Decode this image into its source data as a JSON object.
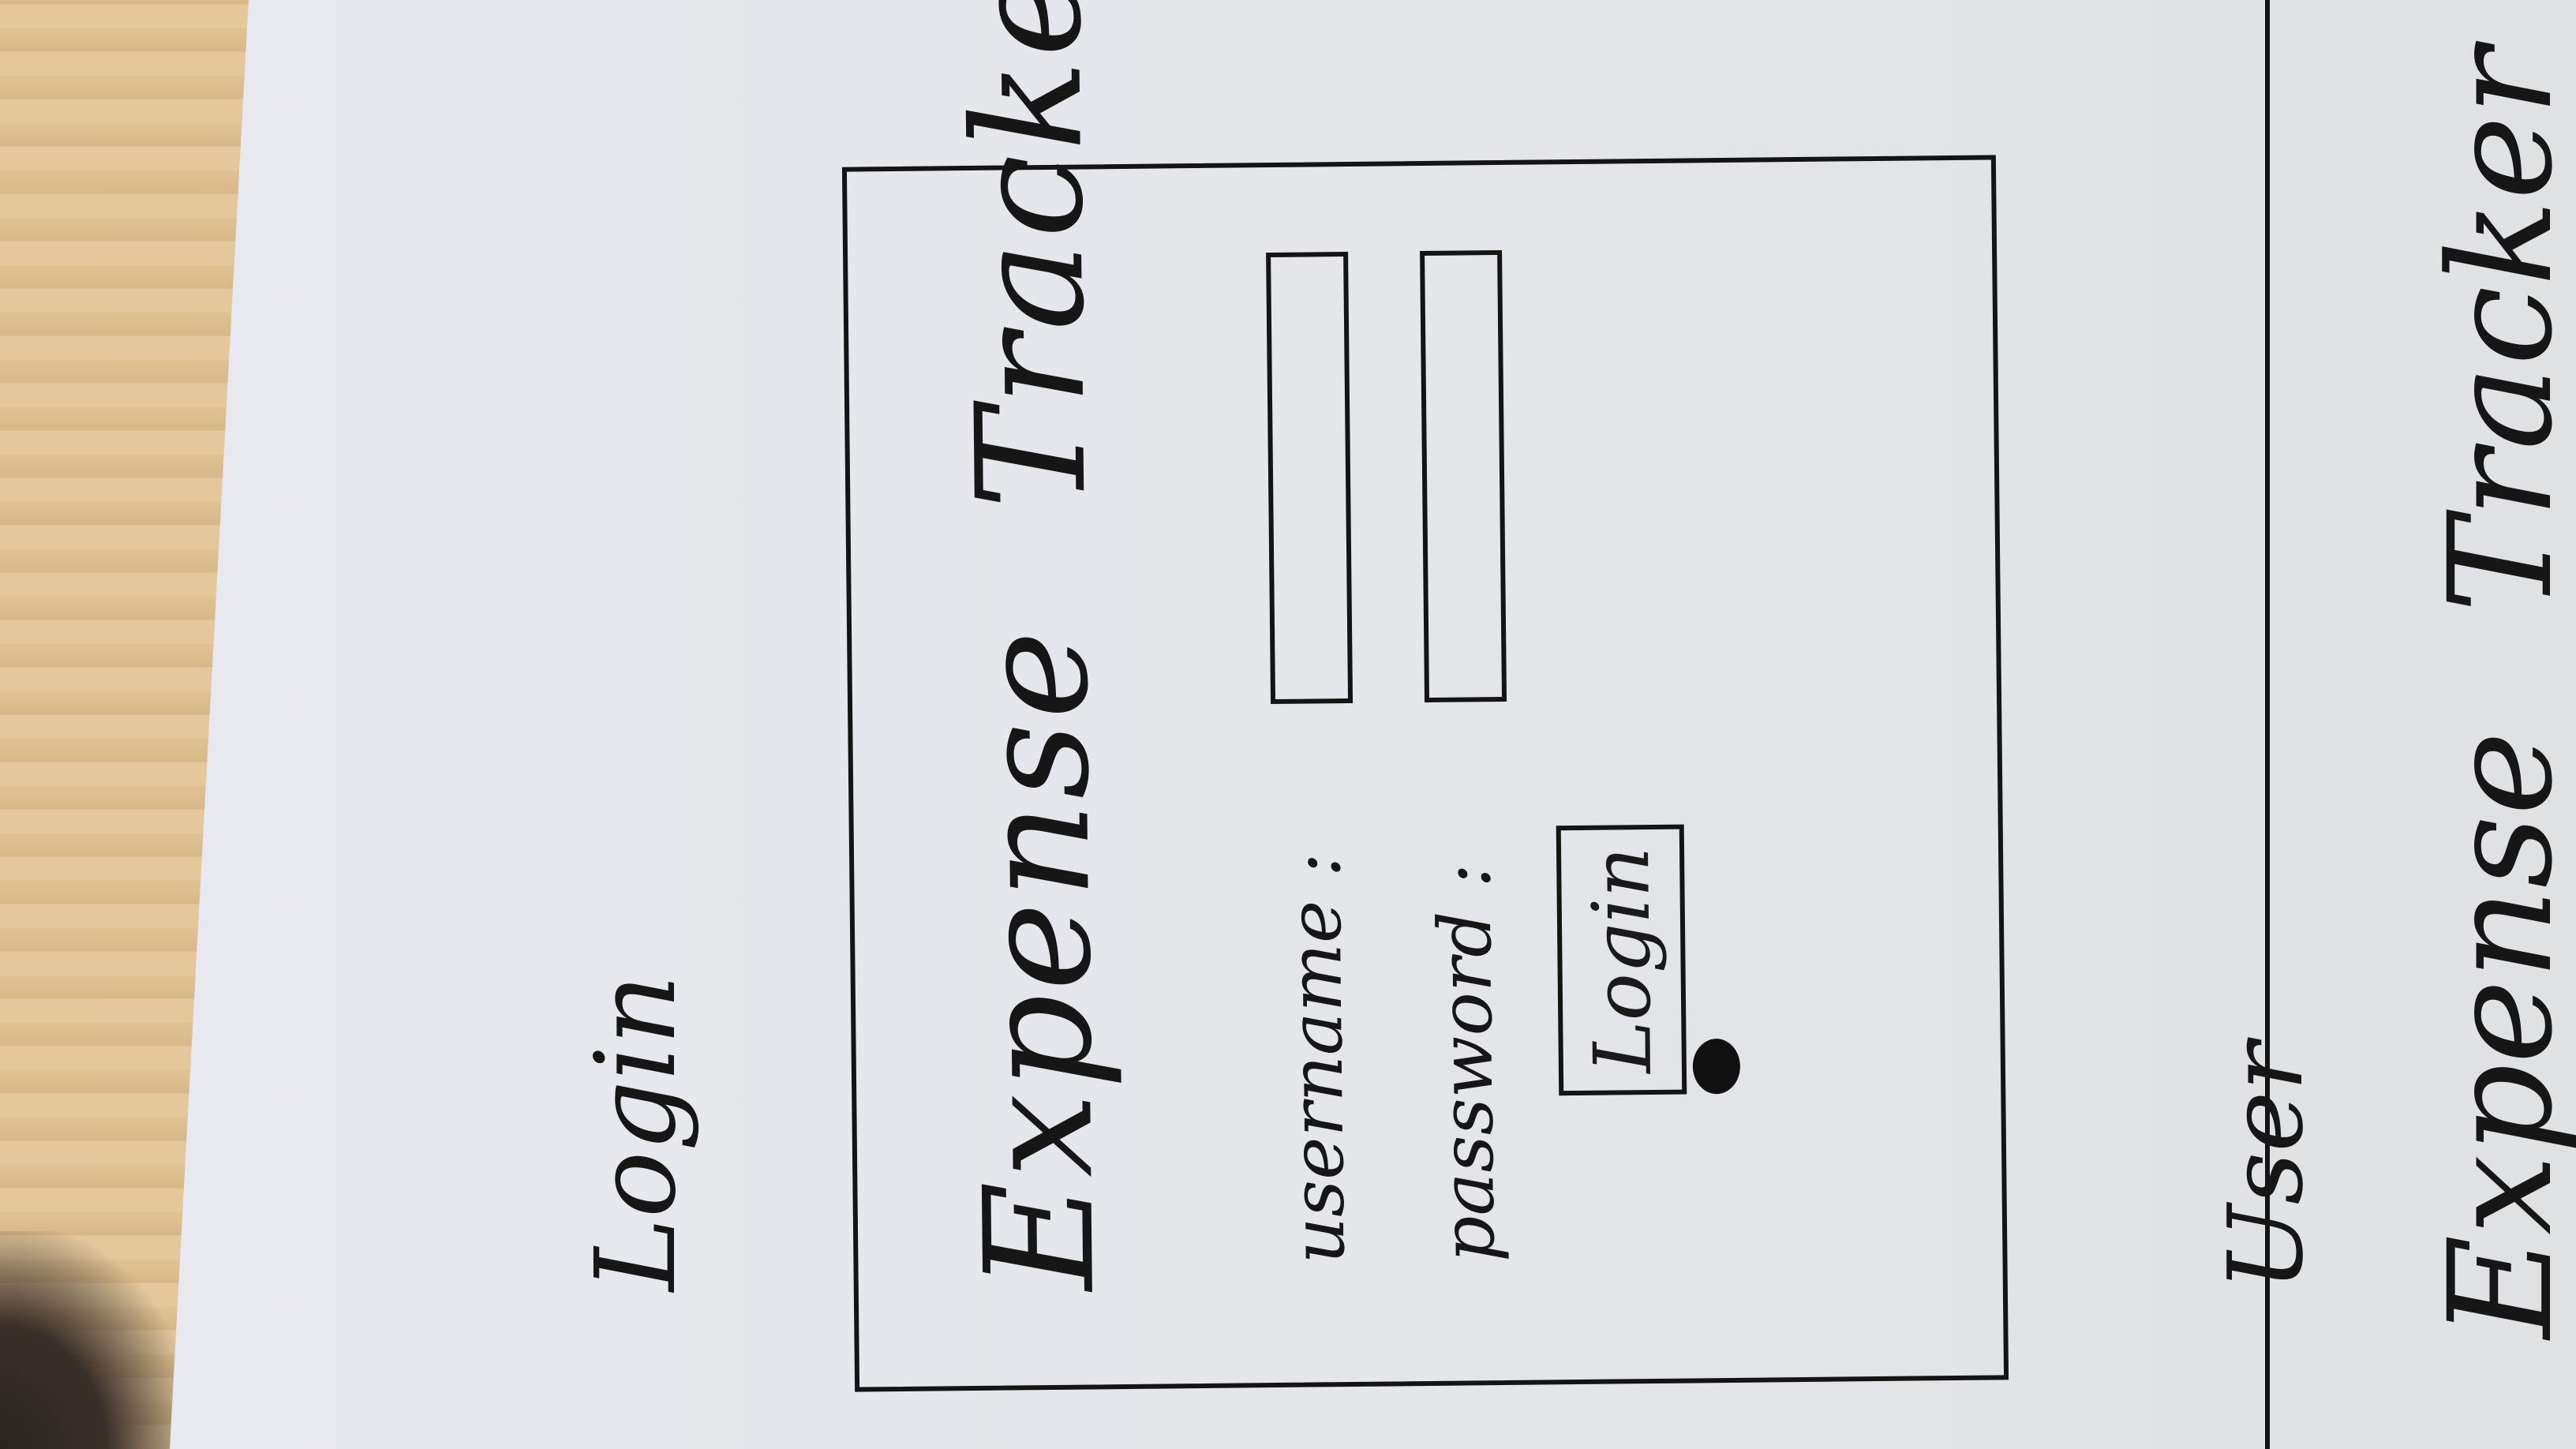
{
  "login_page": {
    "page_label": "Login",
    "title_word1": "Expense",
    "title_word2": "Tracker",
    "username_label": "username :",
    "password_label": "password :",
    "login_button": "Login"
  },
  "next_page": {
    "page_label": "User",
    "title_word1": "Expense",
    "title_word2": "Tracker"
  },
  "colors": {
    "ink": "#141414",
    "paper": "#e4e6ea",
    "table": "#d9b98a"
  }
}
